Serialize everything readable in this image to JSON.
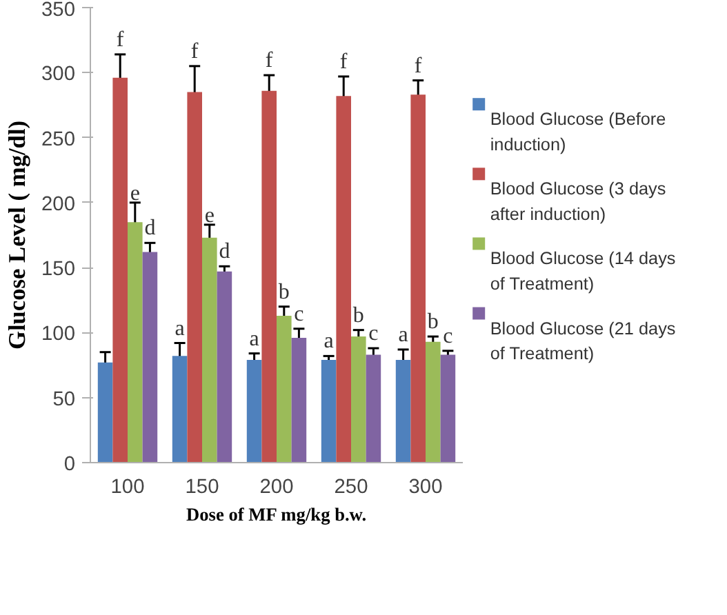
{
  "chart_data": {
    "type": "bar",
    "xlabel": "Dose of MF mg/kg b.w.",
    "ylabel": "Glucose Level ( mg/dl)",
    "categories": [
      "100",
      "150",
      "200",
      "250",
      "300"
    ],
    "ylim": [
      0,
      350
    ],
    "yticks": [
      0,
      50,
      100,
      150,
      200,
      250,
      300,
      350
    ],
    "grid": false,
    "legend": "right",
    "series": [
      {
        "name": "Blood Glucose (Before induction)",
        "color": "#4f81bd",
        "values": [
          77,
          82,
          79,
          79,
          79
        ],
        "errors": [
          8,
          10,
          5,
          3,
          8
        ],
        "value_labels": [
          null,
          "a",
          "a",
          "a",
          "a"
        ]
      },
      {
        "name": "Blood Glucose (3 days after induction)",
        "color": "#c0504d",
        "values": [
          296,
          285,
          286,
          282,
          283
        ],
        "errors": [
          18,
          20,
          12,
          15,
          11
        ],
        "value_labels": [
          "f",
          "f",
          "f",
          "f",
          "f"
        ]
      },
      {
        "name": "Blood Glucose (14 days of Treatment)",
        "color": "#9bbb59",
        "values": [
          185,
          173,
          113,
          97,
          93
        ],
        "errors": [
          15,
          10,
          7,
          5,
          4
        ],
        "value_labels": [
          "e",
          "e",
          "b",
          "b",
          "b"
        ]
      },
      {
        "name": "Blood Glucose (21 days of Treatment)",
        "color": "#8064a2",
        "values": [
          162,
          147,
          96,
          83,
          83
        ],
        "errors": [
          7,
          4,
          7,
          5,
          3
        ],
        "value_labels": [
          "d",
          "d",
          "c",
          "c",
          "c"
        ]
      }
    ]
  }
}
